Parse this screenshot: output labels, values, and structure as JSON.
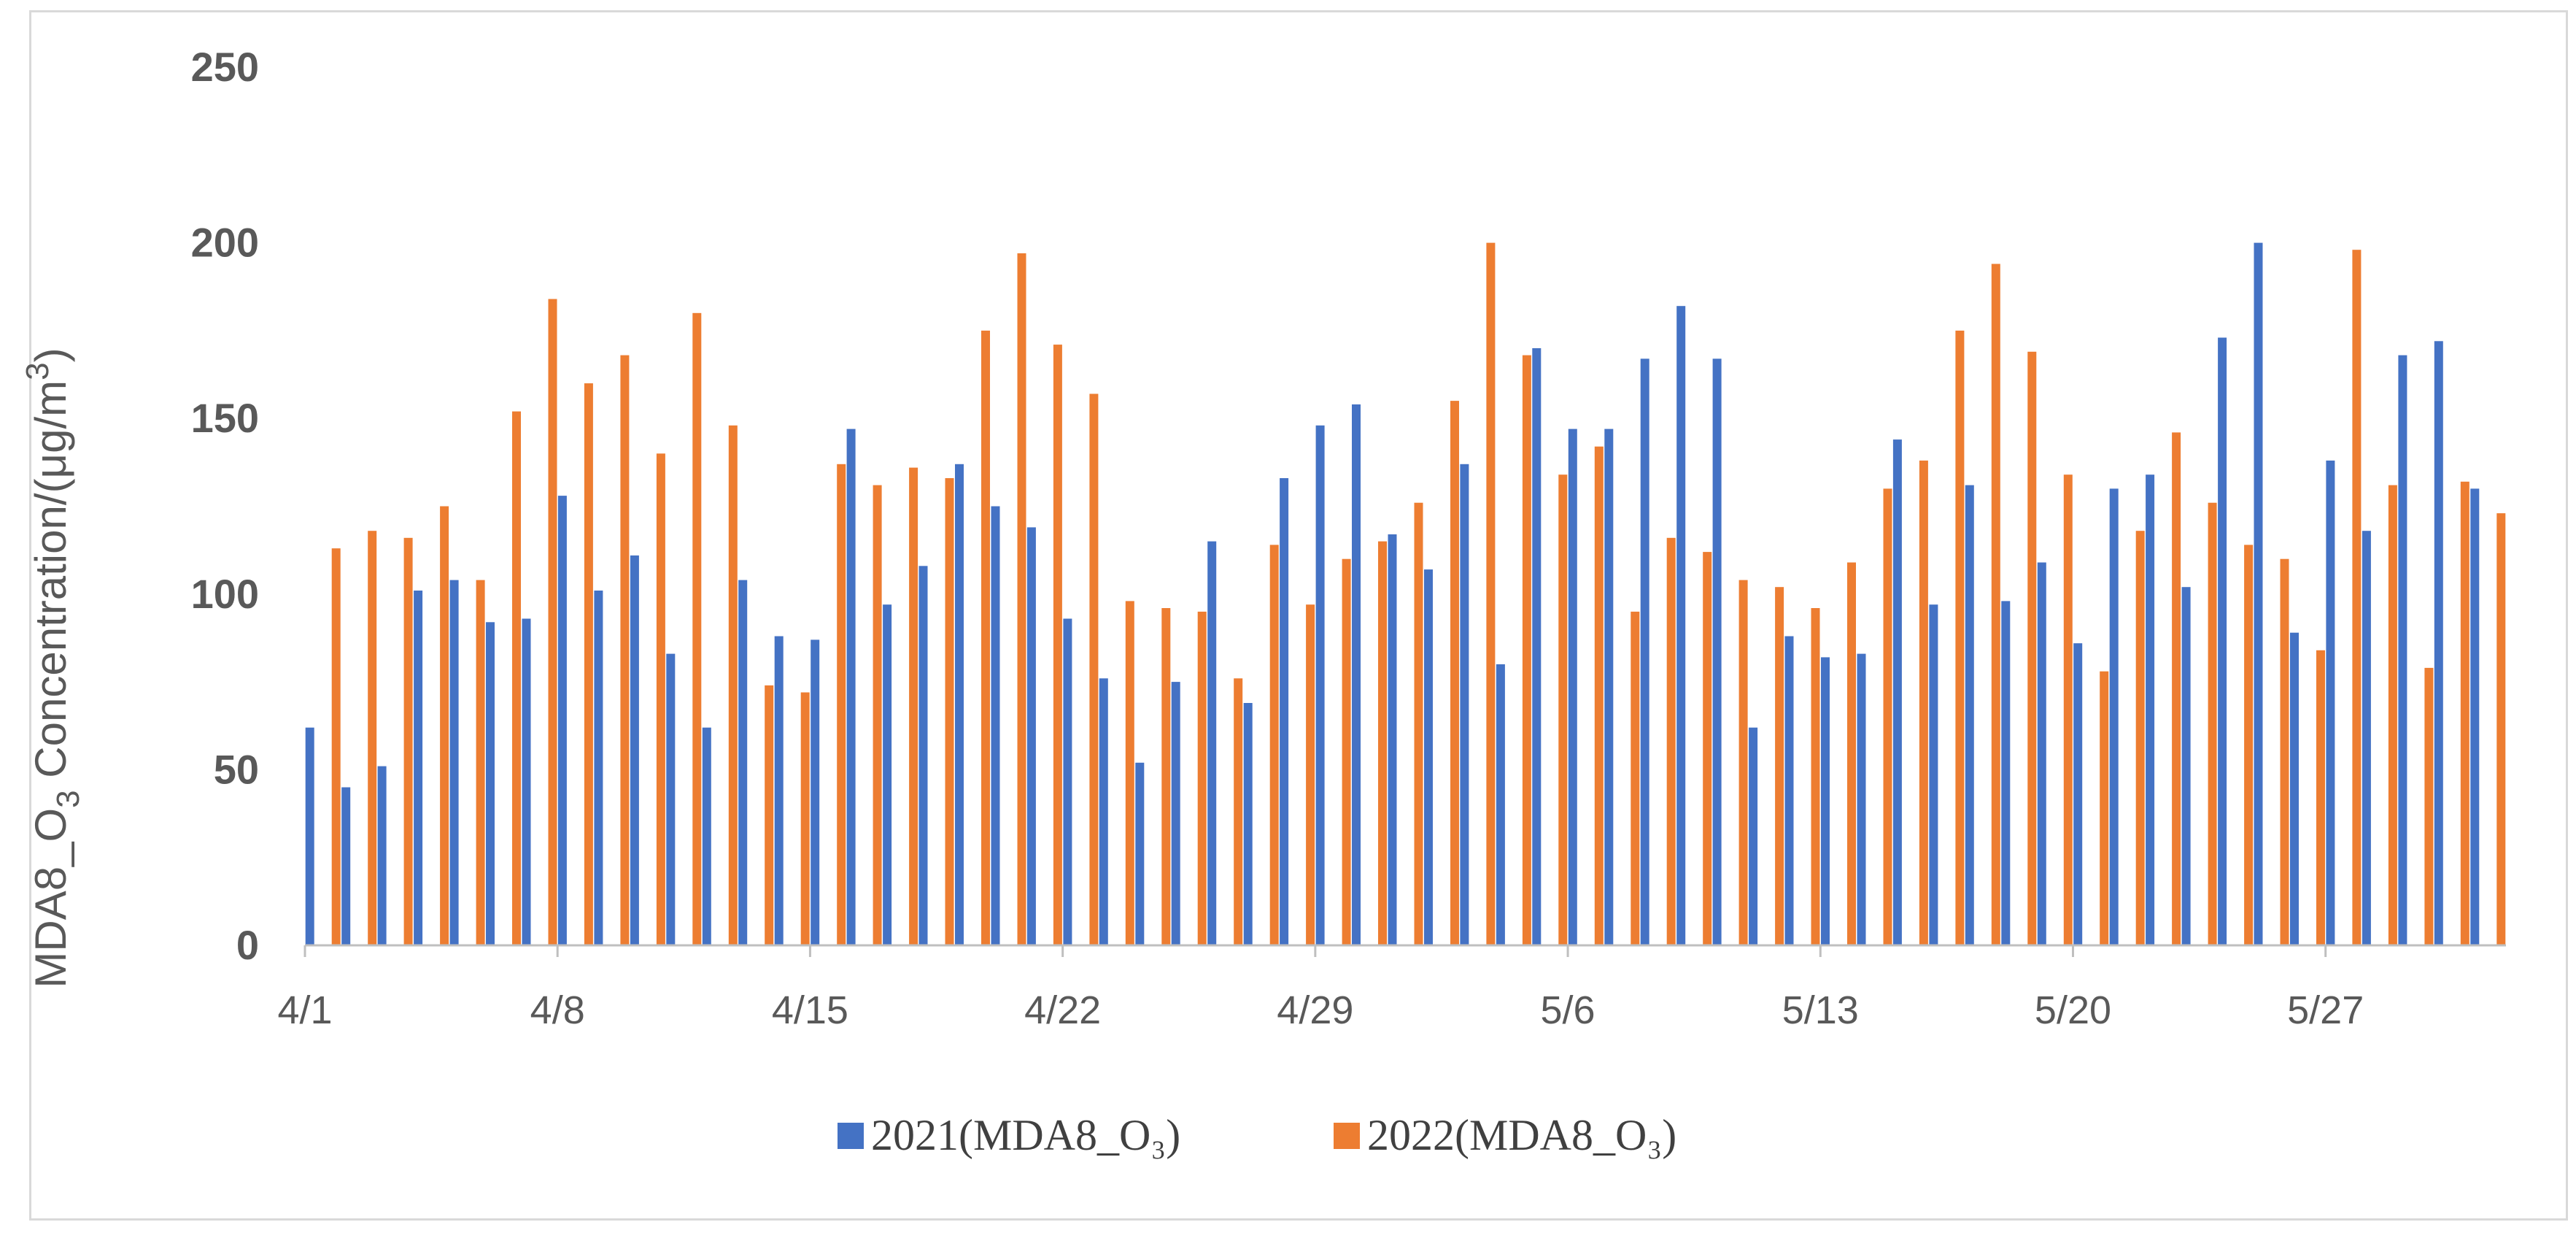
{
  "chart_data": {
    "type": "bar",
    "title": "",
    "xlabel": "",
    "ylabel": {
      "main": "MDA8_O",
      "sub": "3",
      "concentration": " Concentration/(μg/m",
      "sup": "3",
      "close": ")"
    },
    "ylim": [
      0,
      250
    ],
    "yticks": [
      0,
      50,
      100,
      150,
      200,
      250
    ],
    "xtick_labels": [
      "4/1",
      "4/8",
      "4/15",
      "4/22",
      "4/29",
      "5/6",
      "5/13",
      "5/20",
      "5/27"
    ],
    "xtick_every": 7,
    "grid": false,
    "legend_position": "bottom",
    "categories": [
      "4/1",
      "4/2",
      "4/3",
      "4/4",
      "4/5",
      "4/6",
      "4/7",
      "4/8",
      "4/9",
      "4/10",
      "4/11",
      "4/12",
      "4/13",
      "4/14",
      "4/15",
      "4/16",
      "4/17",
      "4/18",
      "4/19",
      "4/20",
      "4/21",
      "4/22",
      "4/23",
      "4/24",
      "4/25",
      "4/26",
      "4/27",
      "4/28",
      "4/29",
      "4/30",
      "5/1",
      "5/2",
      "5/3",
      "5/4",
      "5/5",
      "5/6",
      "5/7",
      "5/8",
      "5/9",
      "5/10",
      "5/11",
      "5/12",
      "5/13",
      "5/14",
      "5/15",
      "5/16",
      "5/17",
      "5/18",
      "5/19",
      "5/20",
      "5/21",
      "5/22",
      "5/23",
      "5/24",
      "5/25",
      "5/26",
      "5/27",
      "5/28",
      "5/29",
      "5/30",
      "5/31"
    ],
    "series": [
      {
        "name": "2021(MDA8_O₃)",
        "color": "#4472c4",
        "values": [
          62,
          45,
          51,
          101,
          104,
          92,
          93,
          128,
          101,
          111,
          83,
          62,
          104,
          88,
          87,
          147,
          97,
          108,
          137,
          125,
          119,
          93,
          76,
          52,
          75,
          115,
          69,
          133,
          148,
          154,
          117,
          107,
          137,
          80,
          170,
          147,
          147,
          167,
          182,
          167,
          62,
          88,
          82,
          83,
          144,
          97,
          131,
          98,
          109,
          86,
          130,
          134,
          102,
          173,
          200,
          89,
          138,
          118,
          168,
          172,
          130
        ]
      },
      {
        "name": "2022(MDA8_O₃)",
        "color": "#ed7d31",
        "values": [
          113,
          118,
          116,
          125,
          104,
          152,
          184,
          160,
          168,
          140,
          180,
          148,
          74,
          72,
          137,
          131,
          136,
          133,
          175,
          197,
          171,
          157,
          98,
          96,
          95,
          76,
          114,
          97,
          110,
          115,
          126,
          155,
          200,
          168,
          134,
          142,
          95,
          116,
          112,
          104,
          102,
          96,
          109,
          130,
          138,
          175,
          194,
          169,
          134,
          78,
          118,
          146,
          126,
          114,
          110,
          84,
          198,
          131,
          79,
          132,
          123
        ]
      }
    ]
  }
}
